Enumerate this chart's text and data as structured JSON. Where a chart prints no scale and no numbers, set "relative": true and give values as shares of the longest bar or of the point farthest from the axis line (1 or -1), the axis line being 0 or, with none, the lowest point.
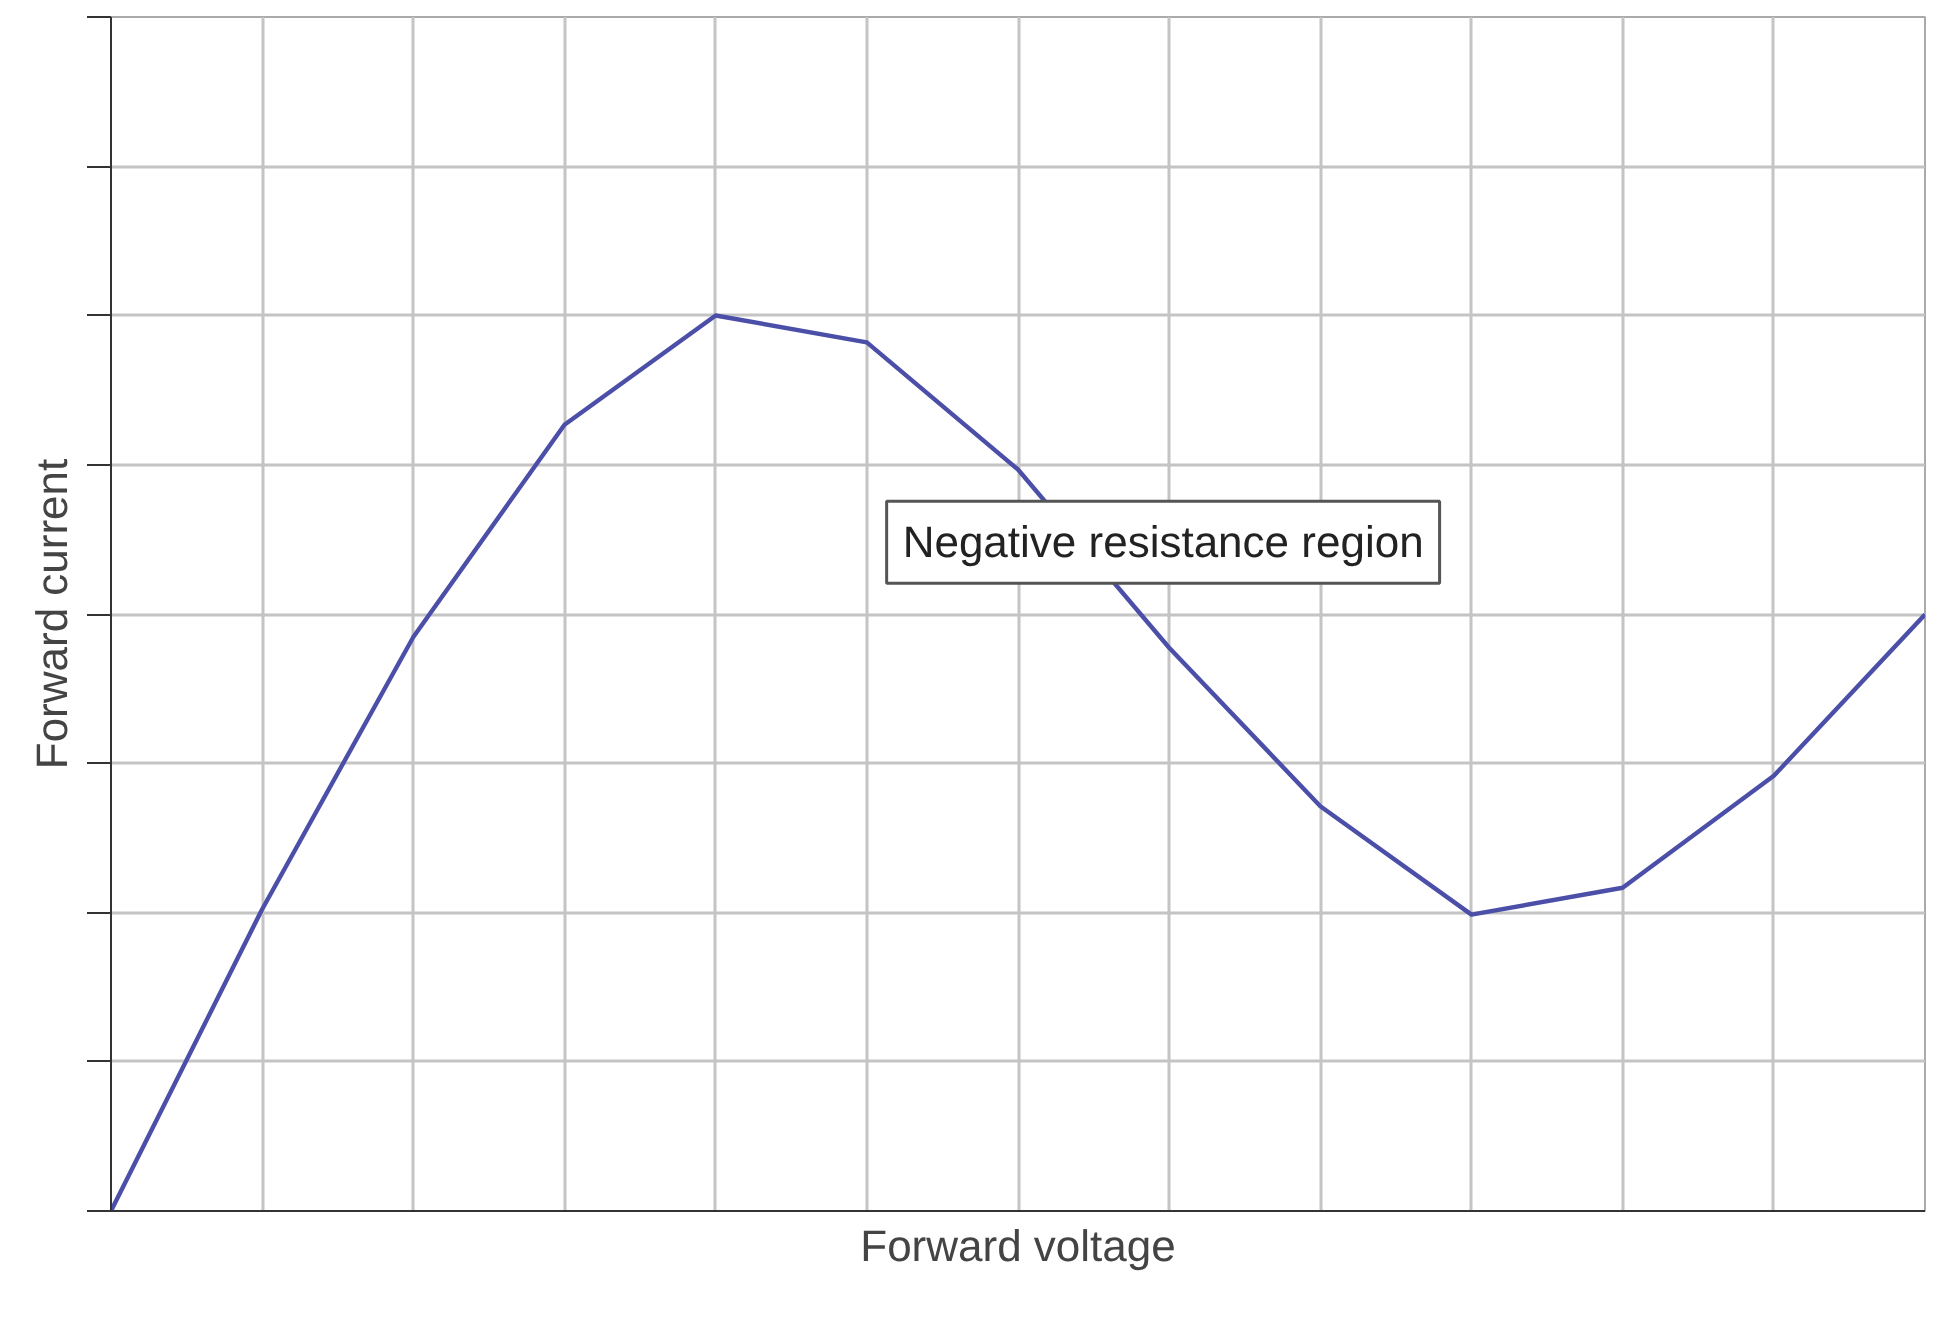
{
  "chart_data": {
    "type": "line",
    "relative": true,
    "xlabel": "Forward voltage",
    "ylabel": "Forward current",
    "annotations": [
      "Negative resistance region"
    ],
    "categories": [
      null,
      null,
      null,
      null,
      null,
      null,
      null,
      null,
      null,
      null,
      null,
      null,
      null
    ],
    "series": [
      {
        "color": "#4b4fa8",
        "values": [
          0,
          0.337,
          0.641,
          0.878,
          1.0,
          0.97,
          0.828,
          0.629,
          0.452,
          0.331,
          0.361,
          0.486,
          0.666
        ]
      }
    ],
    "grid": true,
    "line_style": "solid"
  }
}
